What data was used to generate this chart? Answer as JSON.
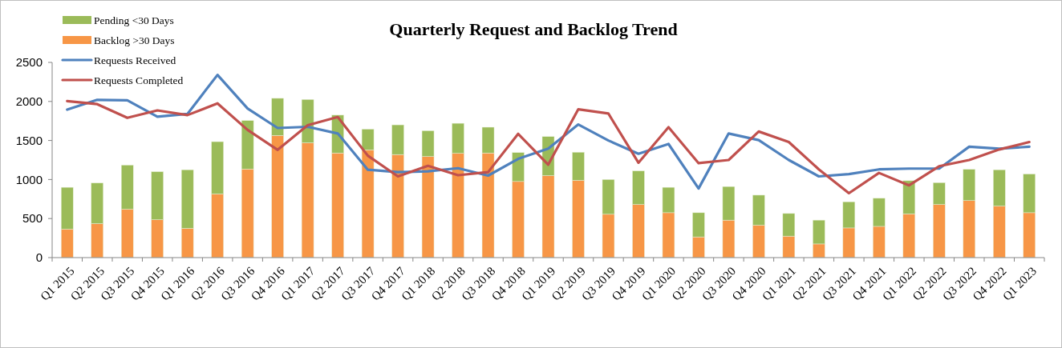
{
  "chart_data": {
    "type": "bar",
    "title": "Quarterly Request and Backlog Trend",
    "stacked": true,
    "legend": "top left",
    "grid": false,
    "categories": [
      "Q1 2015",
      "Q2 2015",
      "Q3 2015",
      "Q4 2015",
      "Q1 2016",
      "Q2 2016",
      "Q3 2016",
      "Q4 2016",
      "Q1 2017",
      "Q2 2017",
      "Q3 2017",
      "Q4 2017",
      "Q1 2018",
      "Q2 2018",
      "Q3 2018",
      "Q4 2018",
      "Q1 2019",
      "Q2 2019",
      "Q3 2019",
      "Q4 2019",
      "Q1 2020",
      "Q2 2020",
      "Q3 2020",
      "Q4 2020",
      "Q1 2021",
      "Q2 2021",
      "Q3 2021",
      "Q4 2021",
      "Q1 2022",
      "Q2 2022",
      "Q3 2022",
      "Q4 2022",
      "Q1 2023"
    ],
    "ylim": [
      0,
      2500
    ],
    "yticks": [
      0,
      500,
      1000,
      1500,
      2000,
      2500
    ],
    "series": [
      {
        "name": "Backlog >30 Days",
        "color": "#f79646",
        "values": [
          365,
          435,
          620,
          485,
          375,
          815,
          1135,
          1565,
          1470,
          1340,
          1380,
          1320,
          1295,
          1335,
          1340,
          975,
          1050,
          990,
          555,
          680,
          575,
          265,
          480,
          415,
          275,
          175,
          380,
          400,
          560,
          680,
          730,
          660,
          575
        ]
      },
      {
        "name": "Pending <30 Days",
        "color": "#9bbb59",
        "values": [
          535,
          520,
          565,
          615,
          750,
          670,
          620,
          475,
          555,
          485,
          265,
          380,
          330,
          385,
          330,
          370,
          500,
          360,
          445,
          430,
          325,
          310,
          430,
          385,
          290,
          305,
          335,
          360,
          425,
          280,
          400,
          465,
          495
        ]
      },
      {
        "name": "Requests Received",
        "type": "line",
        "color": "#4f81bd",
        "values": [
          1895,
          2020,
          2015,
          1805,
          1840,
          2340,
          1910,
          1660,
          1675,
          1590,
          1125,
          1095,
          1105,
          1145,
          1050,
          1265,
          1395,
          1705,
          1500,
          1330,
          1455,
          885,
          1590,
          1505,
          1250,
          1040,
          1070,
          1130,
          1140,
          1140,
          1420,
          1395,
          1420
        ]
      },
      {
        "name": "Requests Completed",
        "type": "line",
        "color": "#c0504d",
        "values": [
          2005,
          1965,
          1790,
          1885,
          1825,
          1975,
          1635,
          1380,
          1695,
          1800,
          1305,
          1040,
          1175,
          1055,
          1095,
          1585,
          1190,
          1900,
          1845,
          1215,
          1670,
          1210,
          1250,
          1615,
          1480,
          1130,
          825,
          1085,
          925,
          1170,
          1250,
          1385,
          1480
        ]
      }
    ]
  }
}
